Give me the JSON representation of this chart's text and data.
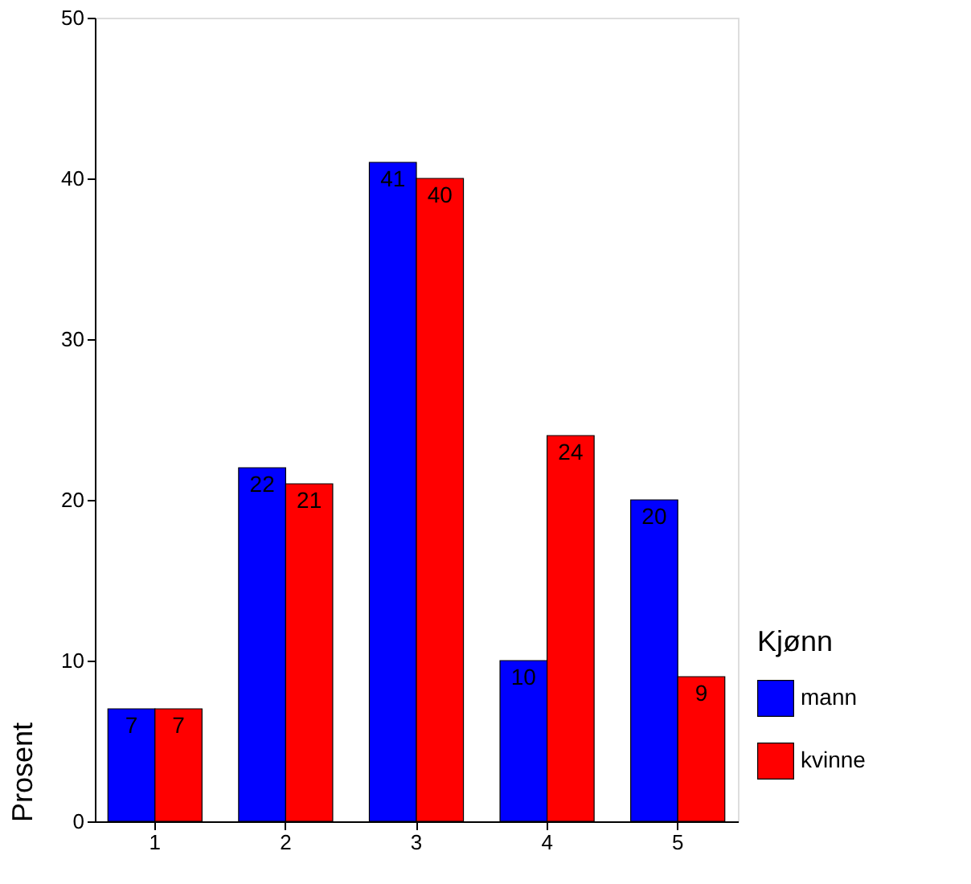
{
  "chart_data": {
    "type": "bar",
    "ylabel": "Prosent",
    "legend_title": "Kjønn",
    "categories": [
      "1",
      "2",
      "3",
      "4",
      "5"
    ],
    "series": [
      {
        "name": "mann",
        "color": "#0000ff",
        "values": [
          7,
          22,
          41,
          10,
          20
        ]
      },
      {
        "name": "kvinne",
        "color": "#ff0000",
        "values": [
          7,
          21,
          40,
          24,
          9
        ]
      }
    ],
    "ylim": [
      0,
      50
    ],
    "yticks": [
      0,
      10,
      20,
      30,
      40,
      50
    ],
    "grid": false,
    "legend": "right",
    "data_labels": true
  }
}
